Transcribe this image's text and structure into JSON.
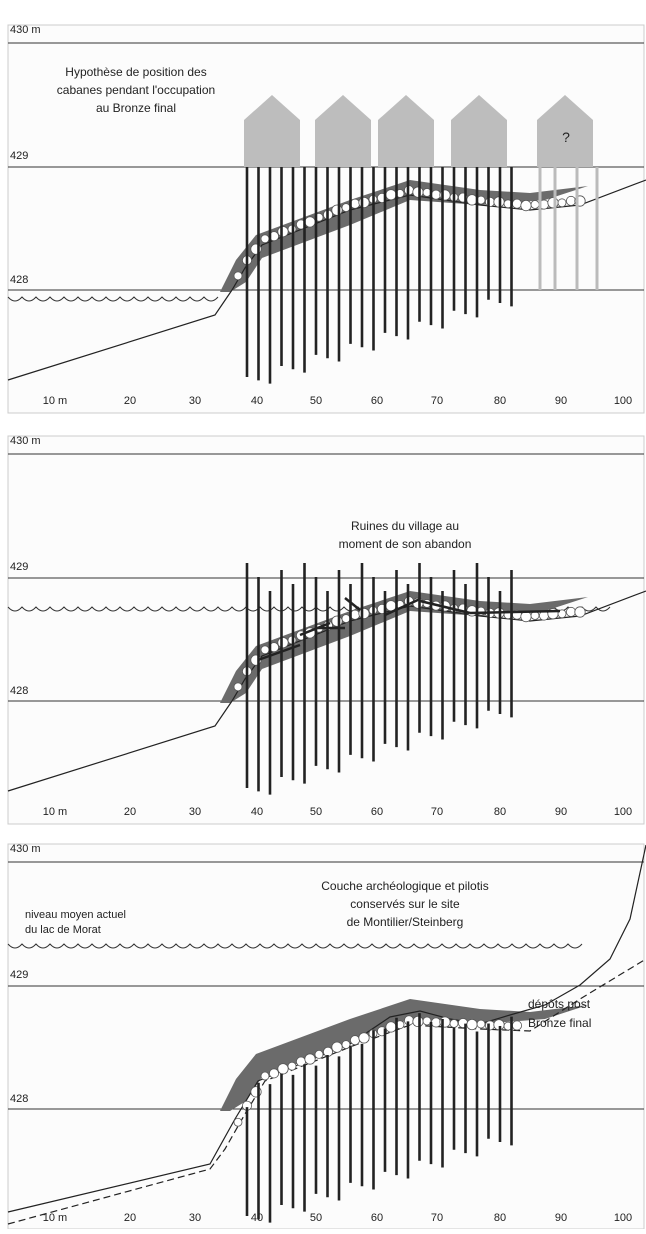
{
  "panels": [
    {
      "elevation_labels": [
        "430 m",
        "429",
        "428"
      ],
      "x_labels": [
        "10 m",
        "20",
        "30",
        "40",
        "50",
        "60",
        "70",
        "80",
        "90",
        "100"
      ],
      "caption": [
        "Hypothèse de position des",
        "cabanes pendant l'occupation",
        "au Bronze final"
      ],
      "house_mark": "?"
    },
    {
      "elevation_labels": [
        "430 m",
        "429",
        "428"
      ],
      "x_labels": [
        "10 m",
        "20",
        "30",
        "40",
        "50",
        "60",
        "70",
        "80",
        "90",
        "100"
      ],
      "caption": [
        "Ruines du village au",
        "moment de son abandon"
      ]
    },
    {
      "elevation_labels": [
        "430 m",
        "429",
        "428"
      ],
      "x_labels": [
        "10 m",
        "20",
        "30",
        "40",
        "50",
        "60",
        "70",
        "80",
        "90",
        "100"
      ],
      "caption": [
        "Couche archéologique et pilotis",
        "conservés sur le site",
        "de Montilier/Steinberg"
      ],
      "water_note": [
        "niveau moyen actuel",
        "du lac de Morat"
      ],
      "deposit_note": [
        "dépôts post",
        "Bronze final"
      ]
    }
  ]
}
